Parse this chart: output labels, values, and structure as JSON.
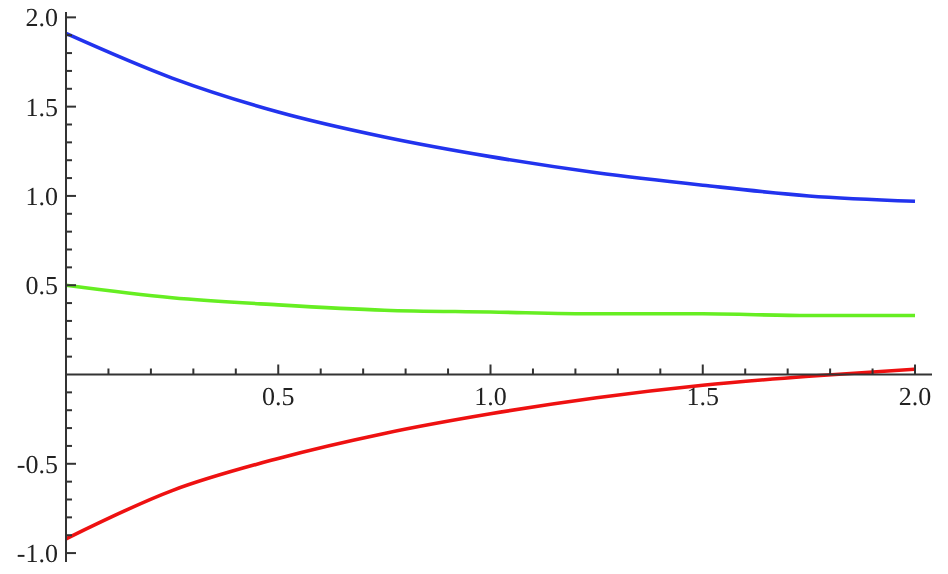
{
  "chart_data": {
    "type": "line",
    "x": [
      0,
      0.25,
      0.5,
      0.75,
      1,
      1.25,
      1.5,
      1.75,
      2
    ],
    "xlim": [
      0,
      2.04
    ],
    "ylim": [
      -1.05,
      2.03
    ],
    "xticks": [
      {
        "value": 0.1,
        "label": null
      },
      {
        "value": 0.2,
        "label": null
      },
      {
        "value": 0.3,
        "label": null
      },
      {
        "value": 0.4,
        "label": null
      },
      0.5,
      {
        "value": 0.6,
        "label": null
      },
      {
        "value": 0.7,
        "label": null
      },
      {
        "value": 0.8,
        "label": null
      },
      {
        "value": 0.9,
        "label": null
      },
      {
        "value": 1,
        "label": "1.0"
      },
      {
        "value": 1.1,
        "label": null
      },
      {
        "value": 1.2,
        "label": null
      },
      {
        "value": 1.3,
        "label": null
      },
      {
        "value": 1.4,
        "label": null
      },
      1.5,
      {
        "value": 1.6,
        "label": null
      },
      {
        "value": 1.7,
        "label": null
      },
      {
        "value": 1.8,
        "label": null
      },
      {
        "value": 1.9,
        "label": null
      },
      {
        "value": 2,
        "label": "2.0"
      }
    ],
    "yticks": [
      {
        "value": -1,
        "label": "-1.0"
      },
      {
        "value": -0.9,
        "label": null
      },
      {
        "value": -0.8,
        "label": null
      },
      {
        "value": -0.7,
        "label": null
      },
      {
        "value": -0.6,
        "label": null
      },
      -0.5,
      {
        "value": -0.4,
        "label": null
      },
      {
        "value": -0.3,
        "label": null
      },
      {
        "value": -0.2,
        "label": null
      },
      {
        "value": -0.1,
        "label": null
      },
      {
        "value": 0.1,
        "label": null
      },
      {
        "value": 0.2,
        "label": null
      },
      {
        "value": 0.3,
        "label": null
      },
      {
        "value": 0.4,
        "label": null
      },
      0.5,
      {
        "value": 0.6,
        "label": null
      },
      {
        "value": 0.7,
        "label": null
      },
      {
        "value": 0.8,
        "label": null
      },
      {
        "value": 0.9,
        "label": null
      },
      {
        "value": 1,
        "label": "1.0"
      },
      {
        "value": 1.1,
        "label": null
      },
      {
        "value": 1.2,
        "label": null
      },
      {
        "value": 1.3,
        "label": null
      },
      {
        "value": 1.4,
        "label": null
      },
      1.5,
      {
        "value": 1.6,
        "label": null
      },
      {
        "value": 1.7,
        "label": null
      },
      {
        "value": 1.8,
        "label": null
      },
      {
        "value": 1.9,
        "label": null
      },
      {
        "value": 2,
        "label": "2.0"
      }
    ],
    "series": [
      {
        "color": "#2233ee",
        "values": [
          1.91,
          1.66,
          1.47,
          1.33,
          1.22,
          1.13,
          1.06,
          1.0,
          0.97
        ]
      },
      {
        "color": "#66ee22",
        "values": [
          0.5,
          0.43,
          0.39,
          0.36,
          0.35,
          0.34,
          0.34,
          0.33,
          0.33
        ]
      },
      {
        "color": "#ee1111",
        "values": [
          -0.92,
          -0.65,
          -0.47,
          -0.33,
          -0.22,
          -0.13,
          -0.06,
          -0.01,
          0.03
        ]
      }
    ]
  }
}
